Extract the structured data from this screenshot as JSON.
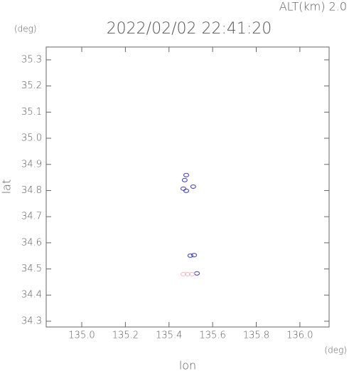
{
  "chart_data": {
    "type": "scatter",
    "title": "2022/02/02 22:41:20",
    "subtitle": "ALT(km) 2.0",
    "y_unit": "(deg)",
    "x_unit": "(deg)",
    "x_label": "lon",
    "y_label": "lat",
    "xlim": [
      134.837,
      136.134
    ],
    "ylim": [
      34.278,
      35.349
    ],
    "xticks": [
      {
        "value": 135,
        "label": "135.0"
      },
      135.2,
      135.4,
      135.6,
      135.8,
      {
        "value": 136,
        "label": "136.0"
      }
    ],
    "yticks": [
      34.3,
      34.4,
      34.5,
      34.6,
      34.7,
      34.8,
      34.9,
      {
        "value": 35,
        "label": "35.0"
      },
      35.1,
      35.2,
      35.3
    ],
    "series": [
      {
        "color": "#3a3ad0",
        "x": [
          135.472,
          135.479,
          135.466,
          135.479,
          135.511,
          135.498,
          135.515,
          135.528
        ],
        "values": [
          34.84,
          34.859,
          34.807,
          34.799,
          34.815,
          34.551,
          34.553,
          34.483
        ]
      },
      {
        "color": "#f4b8c0",
        "x": [
          135.466,
          135.485,
          135.505
        ],
        "values": [
          34.48,
          34.48,
          34.48
        ]
      }
    ]
  }
}
